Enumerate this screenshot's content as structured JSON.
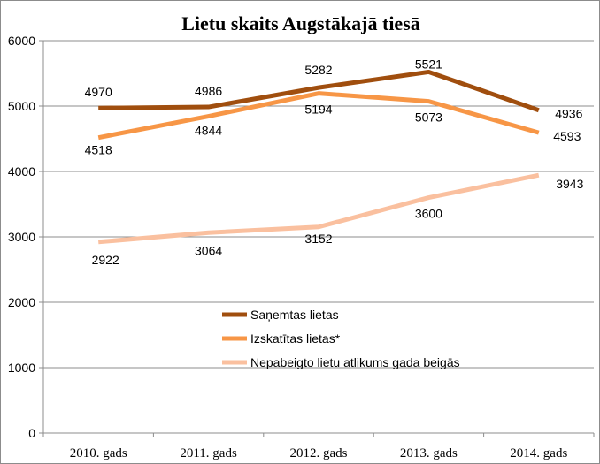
{
  "chart_data": {
    "type": "line",
    "title": "Lietu skaits Augstākajā tiesā",
    "categories": [
      "2010. gads",
      "2011. gads",
      "2012. gads",
      "2013. gads",
      "2014. gads"
    ],
    "ylim": [
      0,
      6000
    ],
    "yticks": [
      "0",
      "1000",
      "2000",
      "3000",
      "4000",
      "5000",
      "6000"
    ],
    "grid": true,
    "legend_position": "center",
    "series": [
      {
        "name": "Saņemtas lietas",
        "values": [
          4970,
          4986,
          5282,
          5521,
          4936
        ],
        "labels": [
          "4970",
          "4986",
          "5282",
          "5521",
          "4936"
        ],
        "color": "#a04e0e"
      },
      {
        "name": "Izskatītas lietas*",
        "values": [
          4518,
          4844,
          5194,
          5073,
          4593
        ],
        "labels": [
          "4518",
          "4844",
          "5194",
          "5073",
          "4593"
        ],
        "color": "#f79646"
      },
      {
        "name": "Nepabeigto lietu atlikums gada beigās",
        "values": [
          2922,
          3064,
          3152,
          3600,
          3943
        ],
        "labels": [
          "2922",
          "3064",
          "3152",
          "3600",
          "3943"
        ],
        "color": "#fac09f"
      }
    ]
  }
}
